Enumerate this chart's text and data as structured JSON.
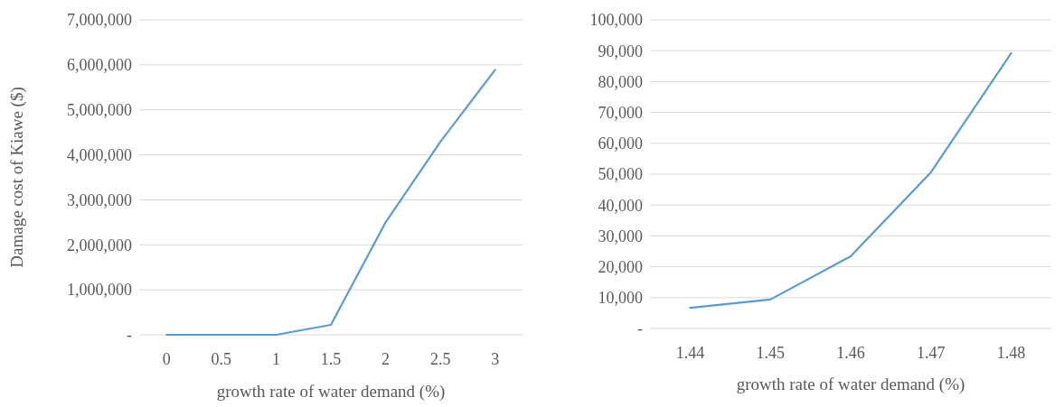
{
  "chart_data": [
    {
      "type": "line",
      "categories": [
        "0",
        "0.5",
        "1",
        "1.5",
        "2",
        "2.5",
        "3"
      ],
      "xlabel": "growth rate of water demand (%)",
      "ylabel": "Damage cost of Kiawe ($)",
      "ylim": [
        0,
        7000000
      ],
      "yticks": [
        {
          "value": 0,
          "label": "-"
        },
        {
          "value": 1000000,
          "label": "1,000,000"
        },
        {
          "value": 2000000,
          "label": "2,000,000"
        },
        {
          "value": 3000000,
          "label": "3,000,000"
        },
        {
          "value": 4000000,
          "label": "4,000,000"
        },
        {
          "value": 5000000,
          "label": "5,000,000"
        },
        {
          "value": 6000000,
          "label": "6,000,000"
        },
        {
          "value": 7000000,
          "label": "7,000,000"
        }
      ],
      "grid": "y",
      "series": [
        {
          "color": "#5b9bd5",
          "values": [
            0,
            0,
            0,
            220000,
            2500000,
            4290000,
            5890000
          ]
        }
      ]
    },
    {
      "type": "line",
      "categories": [
        "1.44",
        "1.45",
        "1.46",
        "1.47",
        "1.48"
      ],
      "xlabel": "growth rate of water demand (%)",
      "ylim": [
        0,
        100000
      ],
      "yticks": [
        {
          "value": 0,
          "label": "-"
        },
        {
          "value": 10000,
          "label": "10,000"
        },
        {
          "value": 20000,
          "label": "20,000"
        },
        {
          "value": 30000,
          "label": "30,000"
        },
        {
          "value": 40000,
          "label": "40,000"
        },
        {
          "value": 50000,
          "label": "50,000"
        },
        {
          "value": 60000,
          "label": "60,000"
        },
        {
          "value": 70000,
          "label": "70,000"
        },
        {
          "value": 80000,
          "label": "80,000"
        },
        {
          "value": 90000,
          "label": "90,000"
        },
        {
          "value": 100000,
          "label": "100,000"
        }
      ],
      "grid": "y",
      "series": [
        {
          "color": "#5b9bd5",
          "values": [
            6700,
            9400,
            23400,
            50600,
            89200
          ]
        }
      ]
    }
  ]
}
